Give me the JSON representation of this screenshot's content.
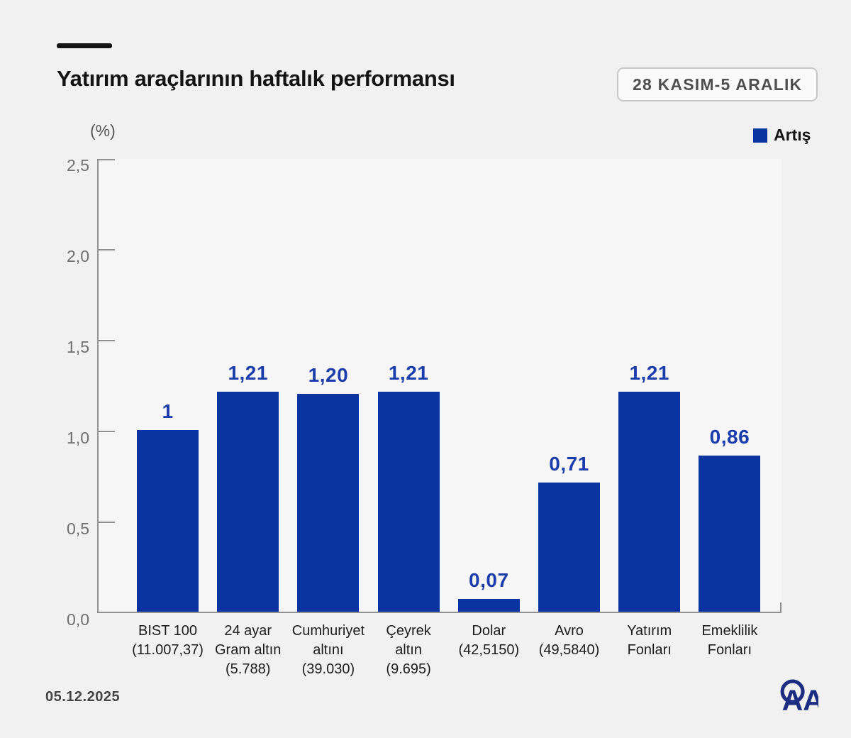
{
  "header": {
    "title": "Yatırım araçlarının haftalık performansı",
    "date_range_badge": "28 KASIM-5 ARALIK"
  },
  "legend": {
    "label": "Artış",
    "color": "#0b34a3"
  },
  "footer": {
    "date": "05.12.2025",
    "logo_text": "AA"
  },
  "colors": {
    "bar": "#0b34a3",
    "value_label": "#1b3cab",
    "axis": "#909090",
    "background": "#f1f1f2",
    "logo_navy": "#1c2d82"
  },
  "chart_data": {
    "type": "bar",
    "title": "Yatırım araçlarının haftalık performansı",
    "unit_label": "(%)",
    "ylim": [
      0,
      2.5
    ],
    "ytick_labels": [
      "0,0",
      "0,5",
      "1,0",
      "1,5",
      "2,0",
      "2,5"
    ],
    "grid": false,
    "legend_position": "top-right",
    "legend_entries": [
      {
        "label": "Artış",
        "color": "#0b34a3"
      }
    ],
    "categories": [
      [
        "BIST 100",
        "(11.007,37)"
      ],
      [
        "24 ayar",
        "Gram altın",
        "(5.788)"
      ],
      [
        "Cumhuriyet",
        "altını",
        "(39.030)"
      ],
      [
        "Çeyrek",
        "altın",
        "(9.695)"
      ],
      [
        "Dolar",
        "(42,5150)"
      ],
      [
        "Avro",
        "(49,5840)"
      ],
      [
        "Yatırım",
        "Fonları"
      ],
      [
        "Emeklilik",
        "Fonları"
      ]
    ],
    "values": [
      1,
      1.21,
      1.2,
      1.21,
      0.07,
      0.71,
      1.21,
      0.86
    ],
    "value_labels": [
      "1",
      "1,21",
      "1,20",
      "1,21",
      "0,07",
      "0,71",
      "1,21",
      "0,86"
    ]
  }
}
